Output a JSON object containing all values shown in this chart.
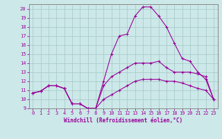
{
  "xlabel": "Windchill (Refroidissement éolien,°C)",
  "bg_color": "#cce8e8",
  "line_color": "#990099",
  "grid_color": "#aacccc",
  "spine_color": "#888888",
  "xlim": [
    -0.5,
    23.5
  ],
  "ylim": [
    9,
    20.5
  ],
  "xticks": [
    0,
    1,
    2,
    3,
    4,
    5,
    6,
    7,
    8,
    9,
    10,
    11,
    12,
    13,
    14,
    15,
    16,
    17,
    18,
    19,
    20,
    21,
    22,
    23
  ],
  "yticks": [
    9,
    10,
    11,
    12,
    13,
    14,
    15,
    16,
    17,
    18,
    19,
    20
  ],
  "line1_x": [
    0,
    1,
    2,
    3,
    4,
    5,
    6,
    7,
    8,
    9,
    10,
    11,
    12,
    13,
    14,
    15,
    16,
    17,
    18,
    19,
    20,
    21,
    22,
    23
  ],
  "line1_y": [
    10.7,
    10.9,
    11.5,
    11.5,
    11.2,
    9.5,
    9.5,
    9.0,
    9.0,
    10.0,
    10.5,
    11.0,
    11.5,
    12.0,
    12.2,
    12.2,
    12.2,
    12.0,
    12.0,
    11.8,
    11.5,
    11.2,
    11.0,
    10.0
  ],
  "line2_x": [
    0,
    1,
    2,
    3,
    4,
    5,
    6,
    7,
    8,
    9,
    10,
    11,
    12,
    13,
    14,
    15,
    16,
    17,
    18,
    19,
    20,
    21,
    22,
    23
  ],
  "line2_y": [
    10.7,
    10.9,
    11.5,
    11.5,
    11.2,
    9.5,
    9.5,
    9.0,
    9.0,
    11.5,
    12.5,
    13.0,
    13.5,
    14.0,
    14.0,
    14.0,
    14.2,
    13.5,
    13.0,
    13.0,
    13.0,
    12.8,
    12.5,
    10.0
  ],
  "line3_x": [
    0,
    1,
    2,
    3,
    4,
    5,
    6,
    7,
    8,
    9,
    10,
    11,
    12,
    13,
    14,
    15,
    16,
    17,
    18,
    19,
    20,
    21,
    22,
    23
  ],
  "line3_y": [
    10.7,
    10.9,
    11.5,
    11.5,
    11.2,
    9.5,
    9.5,
    9.0,
    9.0,
    12.0,
    15.0,
    17.0,
    17.2,
    19.2,
    20.2,
    20.2,
    19.2,
    18.0,
    16.2,
    14.5,
    14.2,
    13.0,
    12.2,
    10.0
  ]
}
